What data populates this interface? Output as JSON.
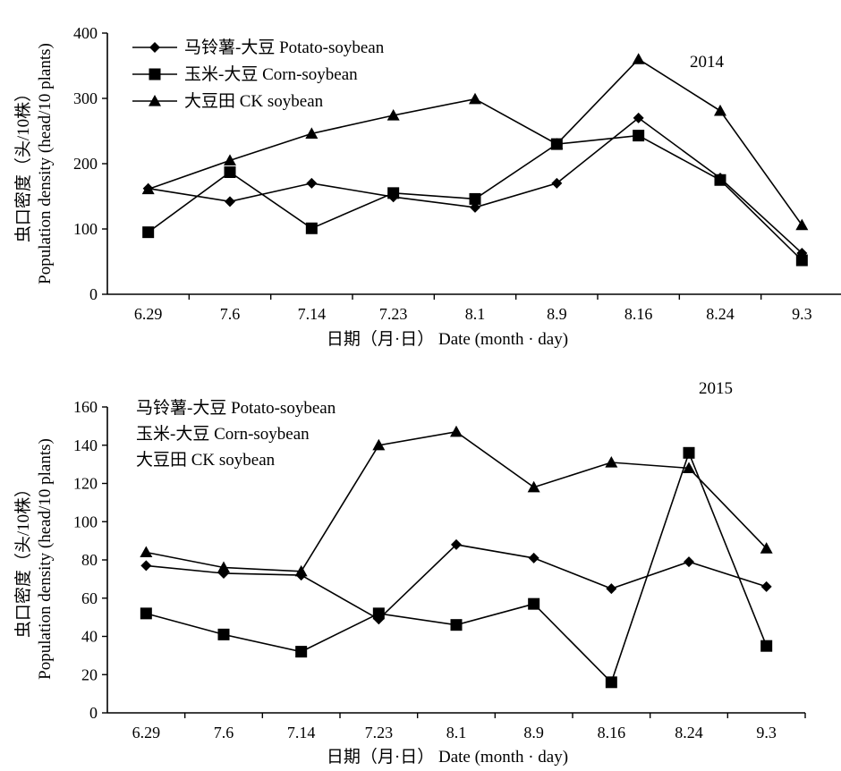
{
  "chart_data": [
    {
      "type": "line",
      "year_label": "2014",
      "categories": [
        "6.29",
        "7.6",
        "7.14",
        "7.23",
        "8.1",
        "8.9",
        "8.16",
        "8.24",
        "9.3"
      ],
      "ylim": [
        0,
        400
      ],
      "yticks": [
        0,
        100,
        200,
        300,
        400
      ],
      "ylabel_cn": "虫口密度（头/10株）",
      "ylabel_en": "Population density (head/10 plants)",
      "xlabel": "日期（月·日） Date (month · day)",
      "legend_position": "top-left",
      "series": [
        {
          "name": "马铃薯-大豆 Potato-soybean",
          "marker": "diamond",
          "values": [
            162,
            142,
            170,
            149,
            133,
            170,
            270,
            178,
            63
          ]
        },
        {
          "name": "玉米-大豆 Corn-soybean",
          "marker": "square",
          "values": [
            95,
            187,
            101,
            155,
            146,
            230,
            243,
            175,
            52
          ]
        },
        {
          "name": "大豆田 CK soybean",
          "marker": "triangle",
          "values": [
            161,
            205,
            246,
            274,
            299,
            230,
            360,
            281,
            106
          ]
        }
      ]
    },
    {
      "type": "line",
      "year_label": "2015",
      "categories": [
        "6.29",
        "7.6",
        "7.14",
        "7.23",
        "8.1",
        "8.9",
        "8.16",
        "8.24",
        "9.3"
      ],
      "ylim": [
        0,
        160
      ],
      "yticks": [
        0,
        20,
        40,
        60,
        80,
        100,
        120,
        140,
        160
      ],
      "ylabel_cn": "虫口密度（头/10株）",
      "ylabel_en": "Population density (head/10 plants)",
      "xlabel": "日期（月·日） Date (month · day)",
      "legend_position": "top-left",
      "series": [
        {
          "name": "马铃薯-大豆 Potato-soybean",
          "marker": "diamond",
          "values": [
            77,
            73,
            72,
            49,
            88,
            81,
            65,
            79,
            66
          ]
        },
        {
          "name": "玉米-大豆 Corn-soybean",
          "marker": "square",
          "values": [
            52,
            41,
            32,
            52,
            46,
            57,
            16,
            136,
            35
          ]
        },
        {
          "name": "大豆田 CK soybean",
          "marker": "triangle",
          "values": [
            84,
            76,
            74,
            140,
            147,
            118,
            131,
            128,
            86
          ]
        }
      ]
    }
  ]
}
